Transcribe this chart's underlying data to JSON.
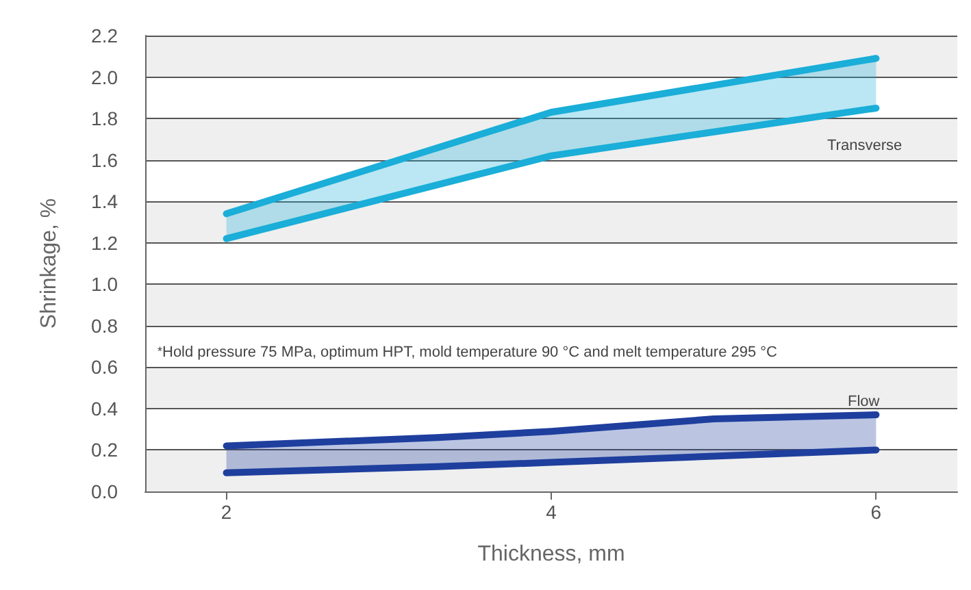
{
  "chart_data": {
    "type": "line",
    "xlabel": "Thickness, mm",
    "ylabel": "Shrinkage, %",
    "xlim": [
      1.5,
      6.5
    ],
    "xticks": [
      2,
      4,
      6
    ],
    "ylim": [
      0,
      2.2
    ],
    "yticks": [
      {
        "value": 0,
        "label": "0.0"
      },
      0.2,
      0.4,
      0.6,
      0.8,
      {
        "value": 1,
        "label": "1.0"
      },
      1.2,
      1.4,
      1.6,
      1.8,
      {
        "value": 2,
        "label": "2.0"
      },
      2.2
    ],
    "grid": "y",
    "marker": "none",
    "line_style": "solid",
    "series": [
      {
        "color": "#1aaed8",
        "x": [
          2,
          4,
          6
        ],
        "values": [
          1.34,
          1.83,
          2.09
        ],
        "lower": [
          1.22,
          1.62,
          1.85
        ],
        "upper": [
          1.34,
          1.83,
          2.09
        ]
      },
      {
        "color": "#1aaed8",
        "x": [
          2,
          4,
          6
        ],
        "values": [
          1.22,
          1.62,
          1.85
        ]
      },
      {
        "color": "#1f3f9e",
        "x": [
          2,
          3.3,
          4,
          5,
          6
        ],
        "values": [
          0.22,
          0.26,
          0.29,
          0.35,
          0.37
        ],
        "lower": [
          0.09,
          0.12,
          0.14,
          0.17,
          0.2
        ],
        "upper": [
          0.22,
          0.26,
          0.29,
          0.35,
          0.37
        ]
      },
      {
        "color": "#1f3f9e",
        "x": [
          2,
          3.3,
          4,
          5,
          6
        ],
        "values": [
          0.09,
          0.12,
          0.14,
          0.17,
          0.2
        ]
      }
    ],
    "annotations": [
      "Transverse",
      "Flow",
      "$^{*}$Hold pressure 75 MPa, optimum HPT, mold temperature 90 °C and melt temperature 295 °C"
    ]
  }
}
